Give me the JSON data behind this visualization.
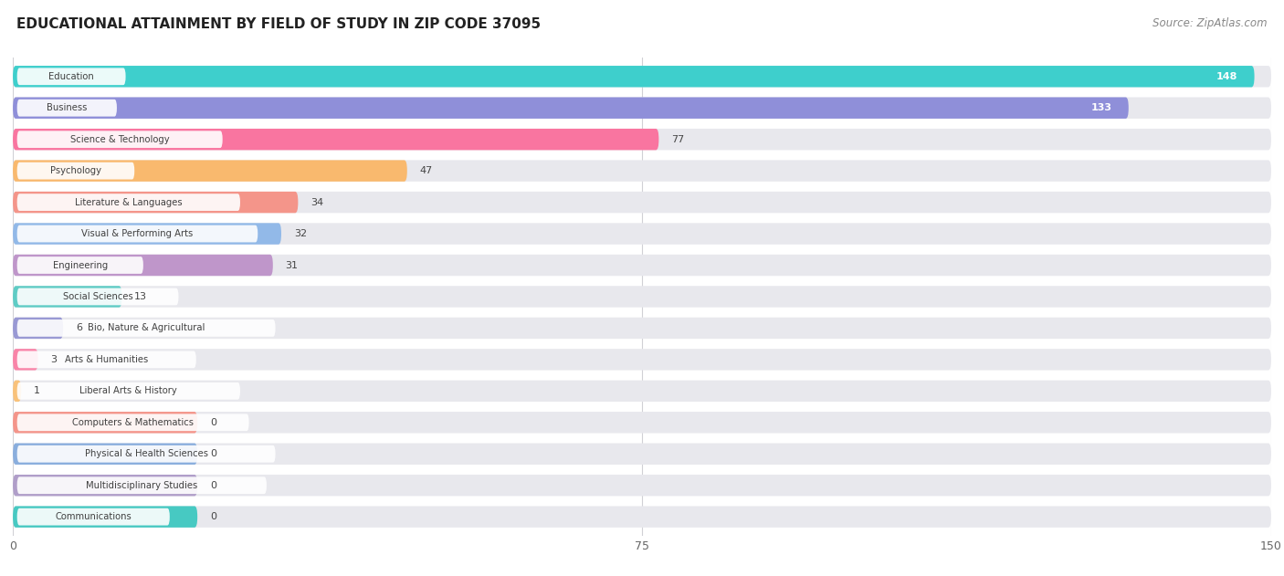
{
  "title": "EDUCATIONAL ATTAINMENT BY FIELD OF STUDY IN ZIP CODE 37095",
  "source": "Source: ZipAtlas.com",
  "categories": [
    "Education",
    "Business",
    "Science & Technology",
    "Psychology",
    "Literature & Languages",
    "Visual & Performing Arts",
    "Engineering",
    "Social Sciences",
    "Bio, Nature & Agricultural",
    "Arts & Humanities",
    "Liberal Arts & History",
    "Computers & Mathematics",
    "Physical & Health Sciences",
    "Multidisciplinary Studies",
    "Communications"
  ],
  "values": [
    148,
    133,
    77,
    47,
    34,
    32,
    31,
    13,
    6,
    3,
    1,
    0,
    0,
    0,
    0
  ],
  "bar_colors": [
    "#3ECFCC",
    "#8F8FD9",
    "#F975A0",
    "#F9B96E",
    "#F4958A",
    "#92B9E8",
    "#BF96CA",
    "#5ECCC5",
    "#9999D4",
    "#F984A8",
    "#F9C27A",
    "#F4958A",
    "#8AAEDD",
    "#B09EC9",
    "#47C9C2"
  ],
  "xlim": [
    0,
    150
  ],
  "xticks": [
    0,
    75,
    150
  ],
  "background_color": "#ffffff",
  "bar_bg_color": "#e8e8ed",
  "title_fontsize": 11,
  "source_fontsize": 8.5,
  "value_label_inside_threshold": 100
}
